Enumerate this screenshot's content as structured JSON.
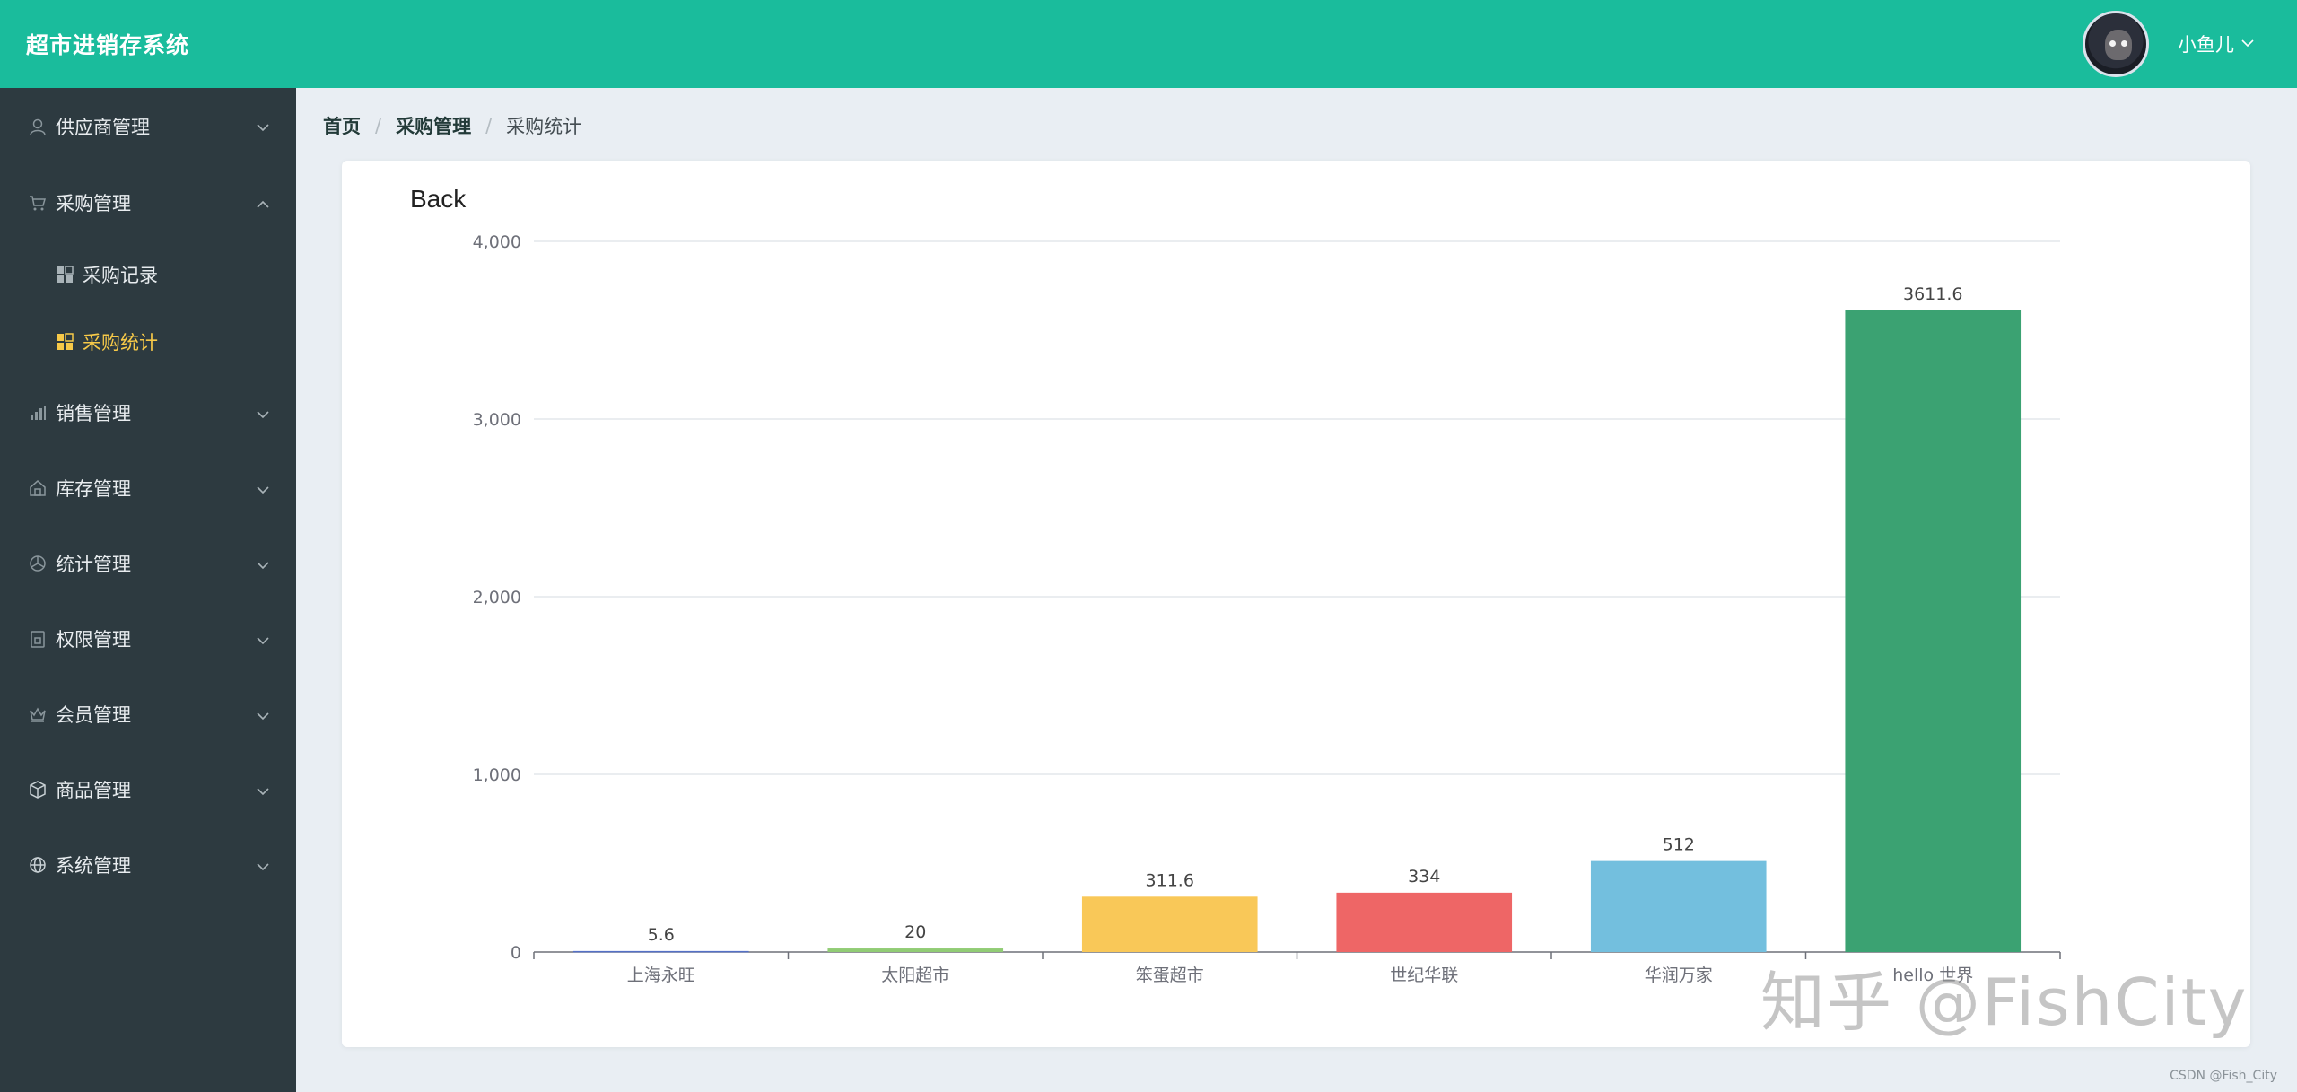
{
  "header": {
    "title": "超市进销存系统",
    "user_name": "小鱼儿"
  },
  "breadcrumb": {
    "home": "首页",
    "section": "采购管理",
    "current": "采购统计"
  },
  "sidebar": {
    "items": [
      {
        "label": "供应商管理",
        "icon": "supplier-icon",
        "expanded": false
      },
      {
        "label": "采购管理",
        "icon": "cart-icon",
        "expanded": true,
        "children": [
          {
            "label": "采购记录",
            "icon": "grid-icon",
            "active": false
          },
          {
            "label": "采购统计",
            "icon": "grid-icon",
            "active": true
          }
        ]
      },
      {
        "label": "销售管理",
        "icon": "bar-icon",
        "expanded": false
      },
      {
        "label": "库存管理",
        "icon": "home-icon",
        "expanded": false
      },
      {
        "label": "统计管理",
        "icon": "pie-icon",
        "expanded": false
      },
      {
        "label": "权限管理",
        "icon": "lock-icon",
        "expanded": false
      },
      {
        "label": "会员管理",
        "icon": "crown-icon",
        "expanded": false
      },
      {
        "label": "商品管理",
        "icon": "box-icon",
        "expanded": false
      },
      {
        "label": "系统管理",
        "icon": "globe-icon",
        "expanded": false
      }
    ]
  },
  "colors": {
    "header": "#1abc9c",
    "sidebar": "#2d3a40",
    "active": "#f7c948",
    "background": "#e9eef3"
  },
  "chart_data": {
    "type": "bar",
    "title": "Back",
    "categories": [
      "上海永旺",
      "太阳超市",
      "笨蛋超市",
      "世纪华联",
      "华润万家",
      "hello 世界"
    ],
    "values": [
      5.6,
      20,
      311.6,
      334,
      512,
      3611.6
    ],
    "data_labels": [
      "5.6",
      "20",
      "311.6",
      "334",
      "512",
      "3611.6"
    ],
    "colors": [
      "#5470c6",
      "#91cc75",
      "#f9c858",
      "#ee6666",
      "#73bfde",
      "#3ba272"
    ],
    "ylim": [
      0,
      4000
    ],
    "yticks": [
      "0",
      "1,000",
      "2,000",
      "3,000",
      "4,000"
    ],
    "grid": true,
    "xlabel": "",
    "ylabel": ""
  },
  "watermark": {
    "text": "知乎 @FishCity"
  },
  "footer": {
    "csdn": "CSDN @Fish_City"
  }
}
